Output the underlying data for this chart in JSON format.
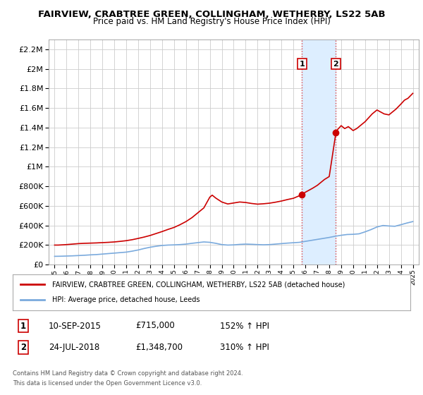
{
  "title": "FAIRVIEW, CRABTREE GREEN, COLLINGHAM, WETHERBY, LS22 5AB",
  "subtitle": "Price paid vs. HM Land Registry's House Price Index (HPI)",
  "legend_line1": "FAIRVIEW, CRABTREE GREEN, COLLINGHAM, WETHERBY, LS22 5AB (detached house)",
  "legend_line2": "HPI: Average price, detached house, Leeds",
  "sale1_date": "10-SEP-2015",
  "sale1_price": 715000,
  "sale1_label": "1",
  "sale1_pct": "152% ↑ HPI",
  "sale2_date": "24-JUL-2018",
  "sale2_price": 1348700,
  "sale2_label": "2",
  "sale2_pct": "310% ↑ HPI",
  "footnote1": "Contains HM Land Registry data © Crown copyright and database right 2024.",
  "footnote2": "This data is licensed under the Open Government Licence v3.0.",
  "ylim_max": 2200000,
  "xlim_min": 1994.5,
  "xlim_max": 2025.5,
  "property_color": "#cc0000",
  "hpi_color": "#7aaadd",
  "shade_color": "#ddeeff",
  "background_color": "#ffffff",
  "grid_color": "#cccccc"
}
